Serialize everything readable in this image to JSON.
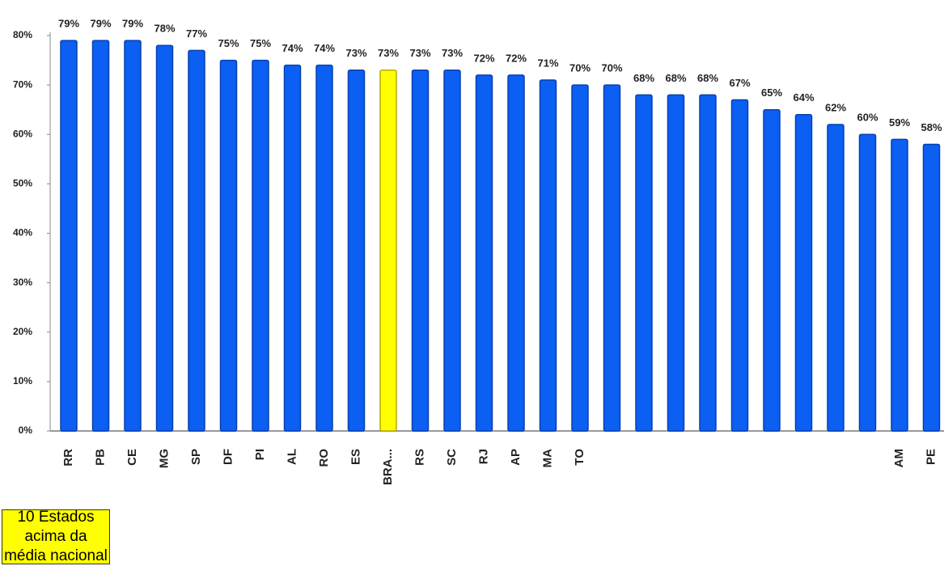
{
  "chart_data": {
    "type": "bar",
    "categories": [
      "RR",
      "PB",
      "CE",
      "MG",
      "SP",
      "DF",
      "PI",
      "AL",
      "RO",
      "ES",
      "BRA...",
      "RS",
      "SC",
      "RJ",
      "AP",
      "MA",
      "TO",
      null,
      null,
      null,
      null,
      null,
      null,
      null,
      null,
      null,
      "AM",
      "PE"
    ],
    "values": [
      79,
      79,
      79,
      78,
      77,
      75,
      75,
      74,
      74,
      73,
      73,
      73,
      73,
      72,
      72,
      71,
      70,
      70,
      68,
      68,
      68,
      67,
      65,
      64,
      62,
      60,
      59,
      58
    ],
    "value_labels": [
      "79%",
      "79%",
      "79%",
      "78%",
      "77%",
      "75%",
      "75%",
      "74%",
      "74%",
      "73%",
      "73%",
      "73%",
      "73%",
      "72%",
      "72%",
      "71%",
      "70%",
      "70%",
      "68%",
      "68%",
      "68%",
      "67%",
      "65%",
      "64%",
      "62%",
      "60%",
      "59%",
      "58%"
    ],
    "colors": [
      "#0b5ff2",
      "#0b5ff2",
      "#0b5ff2",
      "#0b5ff2",
      "#0b5ff2",
      "#0b5ff2",
      "#0b5ff2",
      "#0b5ff2",
      "#0b5ff2",
      "#0b5ff2",
      "#ffff00",
      "#0b5ff2",
      "#0b5ff2",
      "#0b5ff2",
      "#0b5ff2",
      "#0b5ff2",
      "#0b5ff2",
      "#0b5ff2",
      "#0b5ff2",
      "#0b5ff2",
      "#0b5ff2",
      "#0b5ff2",
      "#0b5ff2",
      "#0b5ff2",
      "#0b5ff2",
      "#0b5ff2",
      "#0b5ff2",
      "#0b5ff2"
    ],
    "ylim": [
      0,
      80
    ],
    "yticks": [
      {
        "value": 0,
        "label": "0%"
      },
      {
        "value": 10,
        "label": "10%"
      },
      {
        "value": 20,
        "label": "20%"
      },
      {
        "value": 30,
        "label": "30%"
      },
      {
        "value": 40,
        "label": "40%"
      },
      {
        "value": 50,
        "label": "50%"
      },
      {
        "value": 60,
        "label": "60%"
      },
      {
        "value": 70,
        "label": "70%"
      },
      {
        "value": 80,
        "label": "80%"
      }
    ],
    "annotation": "10 Estados acima da média nacional"
  }
}
